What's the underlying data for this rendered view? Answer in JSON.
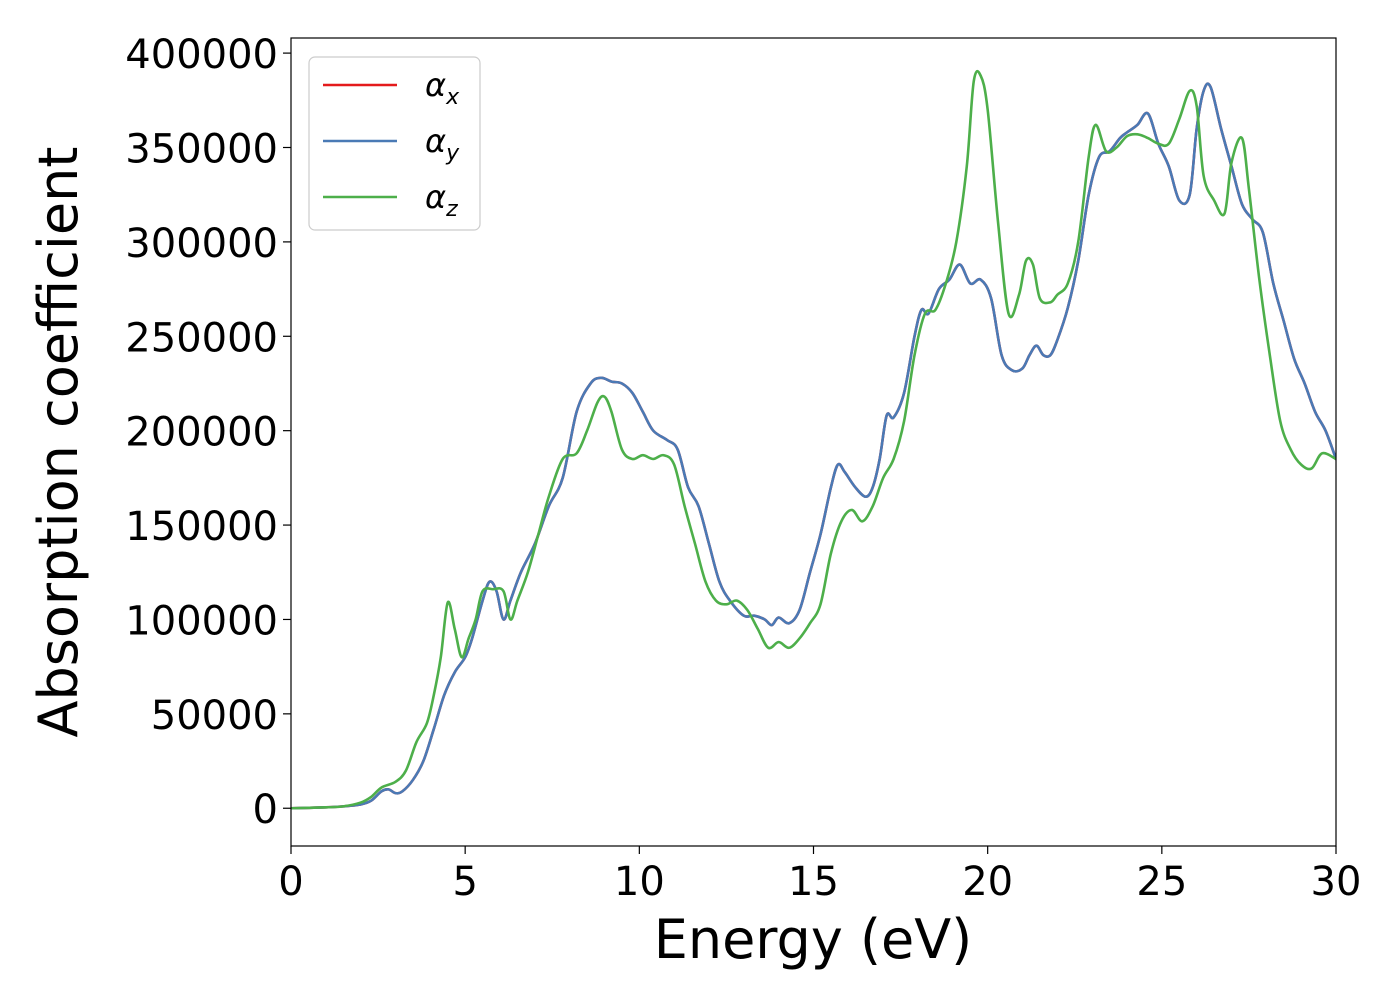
{
  "chart_data": {
    "type": "line",
    "xlabel": "Energy (eV)",
    "ylabel": "Absorption coefficient",
    "xlim": [
      0,
      30
    ],
    "ylim": [
      -20000,
      408000
    ],
    "xticks": [
      0,
      5,
      10,
      15,
      20,
      25,
      30
    ],
    "xtick_labels": [
      "0",
      "5",
      "10",
      "15",
      "20",
      "25",
      "30"
    ],
    "yticks": [
      0,
      50000,
      100000,
      150000,
      200000,
      250000,
      300000,
      350000,
      400000
    ],
    "ytick_labels": [
      "0",
      "50000",
      "100000",
      "150000",
      "200000",
      "250000",
      "300000",
      "350000",
      "400000"
    ],
    "grid": false,
    "legend_position": "top-left",
    "series": [
      {
        "name": "α",
        "subscript": "x",
        "color": "#e41a1c",
        "x": [
          0,
          1,
          1.5,
          2,
          2.3,
          2.6,
          2.8,
          3.0,
          3.2,
          3.5,
          3.8,
          4.1,
          4.4,
          4.7,
          5.0,
          5.2,
          5.5,
          5.7,
          5.9,
          6.1,
          6.3,
          6.6,
          7.0,
          7.4,
          7.8,
          8.2,
          8.6,
          8.9,
          9.2,
          9.5,
          9.8,
          10.1,
          10.4,
          10.8,
          11.1,
          11.4,
          11.7,
          12.0,
          12.3,
          12.6,
          13.0,
          13.3,
          13.6,
          13.8,
          14.0,
          14.3,
          14.6,
          14.9,
          15.2,
          15.5,
          15.7,
          15.9,
          16.2,
          16.5,
          16.7,
          16.9,
          17.1,
          17.3,
          17.6,
          17.9,
          18.1,
          18.3,
          18.6,
          18.9,
          19.2,
          19.5,
          19.8,
          20.1,
          20.4,
          20.7,
          21.0,
          21.2,
          21.4,
          21.6,
          21.8,
          22.0,
          22.3,
          22.6,
          22.9,
          23.2,
          23.5,
          23.8,
          24.0,
          24.3,
          24.6,
          24.9,
          25.2,
          25.5,
          25.8,
          26.0,
          26.2,
          26.4,
          26.7,
          27.0,
          27.3,
          27.6,
          27.9,
          28.2,
          28.5,
          28.8,
          29.1,
          29.4,
          29.7,
          30.0
        ],
        "y": [
          0,
          500,
          1000,
          2000,
          4000,
          9000,
          10000,
          8000,
          9000,
          15000,
          25000,
          42000,
          60000,
          72000,
          80000,
          90000,
          110000,
          120000,
          115000,
          100000,
          110000,
          125000,
          140000,
          160000,
          175000,
          210000,
          225000,
          228000,
          226000,
          225000,
          220000,
          210000,
          200000,
          195000,
          190000,
          170000,
          160000,
          140000,
          120000,
          110000,
          102000,
          102000,
          100000,
          97000,
          101000,
          98000,
          105000,
          125000,
          145000,
          170000,
          182000,
          178000,
          170000,
          165000,
          170000,
          185000,
          208000,
          207000,
          220000,
          250000,
          264000,
          262000,
          275000,
          280000,
          288000,
          278000,
          280000,
          270000,
          240000,
          232000,
          233000,
          240000,
          245000,
          240000,
          240000,
          248000,
          265000,
          290000,
          325000,
          345000,
          348000,
          355000,
          358000,
          362000,
          368000,
          352000,
          340000,
          322000,
          325000,
          360000,
          380000,
          382000,
          360000,
          340000,
          320000,
          312000,
          305000,
          278000,
          258000,
          238000,
          225000,
          210000,
          200000,
          185000
        ]
      },
      {
        "name": "α",
        "subscript": "y",
        "color": "#4a7ab5",
        "x": [
          0,
          1,
          1.5,
          2,
          2.3,
          2.6,
          2.8,
          3.0,
          3.2,
          3.5,
          3.8,
          4.1,
          4.4,
          4.7,
          5.0,
          5.2,
          5.5,
          5.7,
          5.9,
          6.1,
          6.3,
          6.6,
          7.0,
          7.4,
          7.8,
          8.2,
          8.6,
          8.9,
          9.2,
          9.5,
          9.8,
          10.1,
          10.4,
          10.8,
          11.1,
          11.4,
          11.7,
          12.0,
          12.3,
          12.6,
          13.0,
          13.3,
          13.6,
          13.8,
          14.0,
          14.3,
          14.6,
          14.9,
          15.2,
          15.5,
          15.7,
          15.9,
          16.2,
          16.5,
          16.7,
          16.9,
          17.1,
          17.3,
          17.6,
          17.9,
          18.1,
          18.3,
          18.6,
          18.9,
          19.2,
          19.5,
          19.8,
          20.1,
          20.4,
          20.7,
          21.0,
          21.2,
          21.4,
          21.6,
          21.8,
          22.0,
          22.3,
          22.6,
          22.9,
          23.2,
          23.5,
          23.8,
          24.0,
          24.3,
          24.6,
          24.9,
          25.2,
          25.5,
          25.8,
          26.0,
          26.2,
          26.4,
          26.7,
          27.0,
          27.3,
          27.6,
          27.9,
          28.2,
          28.5,
          28.8,
          29.1,
          29.4,
          29.7,
          30.0
        ],
        "y": [
          0,
          500,
          1000,
          2000,
          4000,
          9000,
          10000,
          8000,
          9000,
          15000,
          25000,
          42000,
          60000,
          72000,
          80000,
          90000,
          110000,
          120000,
          115000,
          100000,
          110000,
          125000,
          140000,
          160000,
          175000,
          210000,
          225000,
          228000,
          226000,
          225000,
          220000,
          210000,
          200000,
          195000,
          190000,
          170000,
          160000,
          140000,
          120000,
          110000,
          102000,
          102000,
          100000,
          97000,
          101000,
          98000,
          105000,
          125000,
          145000,
          170000,
          182000,
          178000,
          170000,
          165000,
          170000,
          185000,
          208000,
          207000,
          220000,
          250000,
          264000,
          262000,
          275000,
          280000,
          288000,
          278000,
          280000,
          270000,
          240000,
          232000,
          233000,
          240000,
          245000,
          240000,
          240000,
          248000,
          265000,
          290000,
          325000,
          345000,
          348000,
          355000,
          358000,
          362000,
          368000,
          352000,
          340000,
          322000,
          325000,
          360000,
          380000,
          382000,
          360000,
          340000,
          320000,
          312000,
          305000,
          278000,
          258000,
          238000,
          225000,
          210000,
          200000,
          185000
        ]
      },
      {
        "name": "α",
        "subscript": "z",
        "color": "#4daf4a",
        "x": [
          0,
          1,
          1.5,
          2,
          2.3,
          2.6,
          3.0,
          3.3,
          3.6,
          3.9,
          4.1,
          4.3,
          4.5,
          4.7,
          4.9,
          5.1,
          5.3,
          5.5,
          5.8,
          6.1,
          6.3,
          6.5,
          6.8,
          7.1,
          7.4,
          7.8,
          8.2,
          8.5,
          8.8,
          9.0,
          9.2,
          9.5,
          9.8,
          10.1,
          10.4,
          10.7,
          11.0,
          11.3,
          11.6,
          11.9,
          12.2,
          12.5,
          12.8,
          13.1,
          13.4,
          13.7,
          14.0,
          14.3,
          14.6,
          14.9,
          15.2,
          15.5,
          15.8,
          16.1,
          16.4,
          16.7,
          17.0,
          17.3,
          17.6,
          17.9,
          18.2,
          18.5,
          18.8,
          19.1,
          19.4,
          19.6,
          19.8,
          20.0,
          20.3,
          20.6,
          20.9,
          21.1,
          21.3,
          21.5,
          21.8,
          22.0,
          22.3,
          22.6,
          22.9,
          23.1,
          23.4,
          23.7,
          24.0,
          24.3,
          24.6,
          24.9,
          25.2,
          25.5,
          25.8,
          26.0,
          26.2,
          26.5,
          26.8,
          27.0,
          27.3,
          27.5,
          27.8,
          28.1,
          28.4,
          28.7,
          29.0,
          29.3,
          29.6,
          30.0
        ],
        "y": [
          0,
          500,
          1000,
          3000,
          6000,
          11000,
          14000,
          20000,
          35000,
          45000,
          60000,
          80000,
          109000,
          95000,
          80000,
          90000,
          100000,
          115000,
          116000,
          115000,
          100000,
          110000,
          125000,
          145000,
          165000,
          185000,
          188000,
          200000,
          215000,
          218000,
          210000,
          190000,
          185000,
          187000,
          185000,
          187000,
          182000,
          160000,
          140000,
          120000,
          110000,
          108000,
          110000,
          105000,
          95000,
          85000,
          88000,
          85000,
          90000,
          98000,
          108000,
          135000,
          152000,
          158000,
          152000,
          160000,
          175000,
          185000,
          205000,
          240000,
          262000,
          264000,
          278000,
          300000,
          340000,
          385000,
          388000,
          370000,
          310000,
          262000,
          272000,
          290000,
          288000,
          270000,
          268000,
          272000,
          278000,
          300000,
          345000,
          362000,
          348000,
          350000,
          356000,
          357000,
          355000,
          352000,
          352000,
          365000,
          380000,
          372000,
          335000,
          322000,
          315000,
          342000,
          355000,
          328000,
          280000,
          240000,
          205000,
          190000,
          182000,
          180000,
          188000,
          185000
        ]
      }
    ]
  }
}
